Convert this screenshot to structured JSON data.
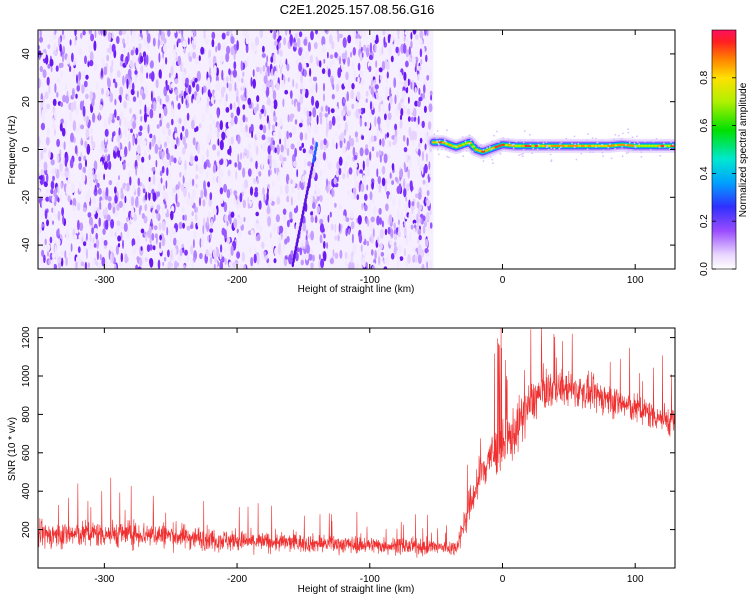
{
  "title": "C2E1.2025.157.08.56.G16",
  "chart_data": [
    {
      "type": "heatmap",
      "xlabel": "Height of straight line (km)",
      "ylabel": "Frequency (Hz)",
      "xlim": [
        -350,
        130
      ],
      "ylim": [
        -50,
        50
      ],
      "x_ticks": [
        -300,
        -200,
        -100,
        0,
        100
      ],
      "y_ticks": [
        -40,
        -20,
        0,
        20,
        40
      ],
      "noise_region_x": [
        -350,
        -52
      ],
      "signal_trace": {
        "x": [
          -52,
          -45,
          -40,
          -35,
          -30,
          -25,
          -20,
          -15,
          -10,
          -5,
          0,
          10,
          20,
          40,
          60,
          80,
          90,
          100,
          110,
          120,
          130
        ],
        "y": [
          3,
          3,
          2,
          1,
          2,
          3,
          0,
          -1,
          0,
          1,
          2,
          1.5,
          1.5,
          1.5,
          1.5,
          1.5,
          2,
          1.5,
          1.5,
          1.5,
          1.5
        ]
      },
      "faint_streak": {
        "x": [
          -158,
          -140
        ],
        "y": [
          -48,
          2
        ]
      },
      "colorbar": {
        "label": "Normalized spectral amplitude",
        "range": [
          0,
          1
        ],
        "ticks": [
          0.0,
          0.2,
          0.4,
          0.6,
          0.8
        ]
      },
      "grid": false
    },
    {
      "type": "line",
      "xlabel": "Height of straight line (km)",
      "ylabel": "SNR (10 * v/v)",
      "xlim": [
        -350,
        130
      ],
      "ylim": [
        0,
        1250
      ],
      "x_ticks": [
        -300,
        -200,
        -100,
        0,
        100
      ],
      "y_ticks": [
        200,
        400,
        600,
        800,
        1000,
        1200
      ],
      "color": "#f03030",
      "envelope": {
        "x": [
          -350,
          -300,
          -260,
          -200,
          -150,
          -100,
          -60,
          -35,
          -28,
          -20,
          -10,
          0,
          10,
          20,
          30,
          40,
          60,
          80,
          100,
          130
        ],
        "mean": [
          170,
          180,
          175,
          140,
          130,
          120,
          110,
          105,
          250,
          420,
          580,
          620,
          720,
          850,
          920,
          940,
          920,
          880,
          830,
          760
        ],
        "noise": [
          85,
          90,
          85,
          70,
          60,
          55,
          55,
          50,
          100,
          140,
          160,
          180,
          170,
          150,
          130,
          120,
          110,
          110,
          100,
          100
        ]
      },
      "grid": false
    }
  ]
}
